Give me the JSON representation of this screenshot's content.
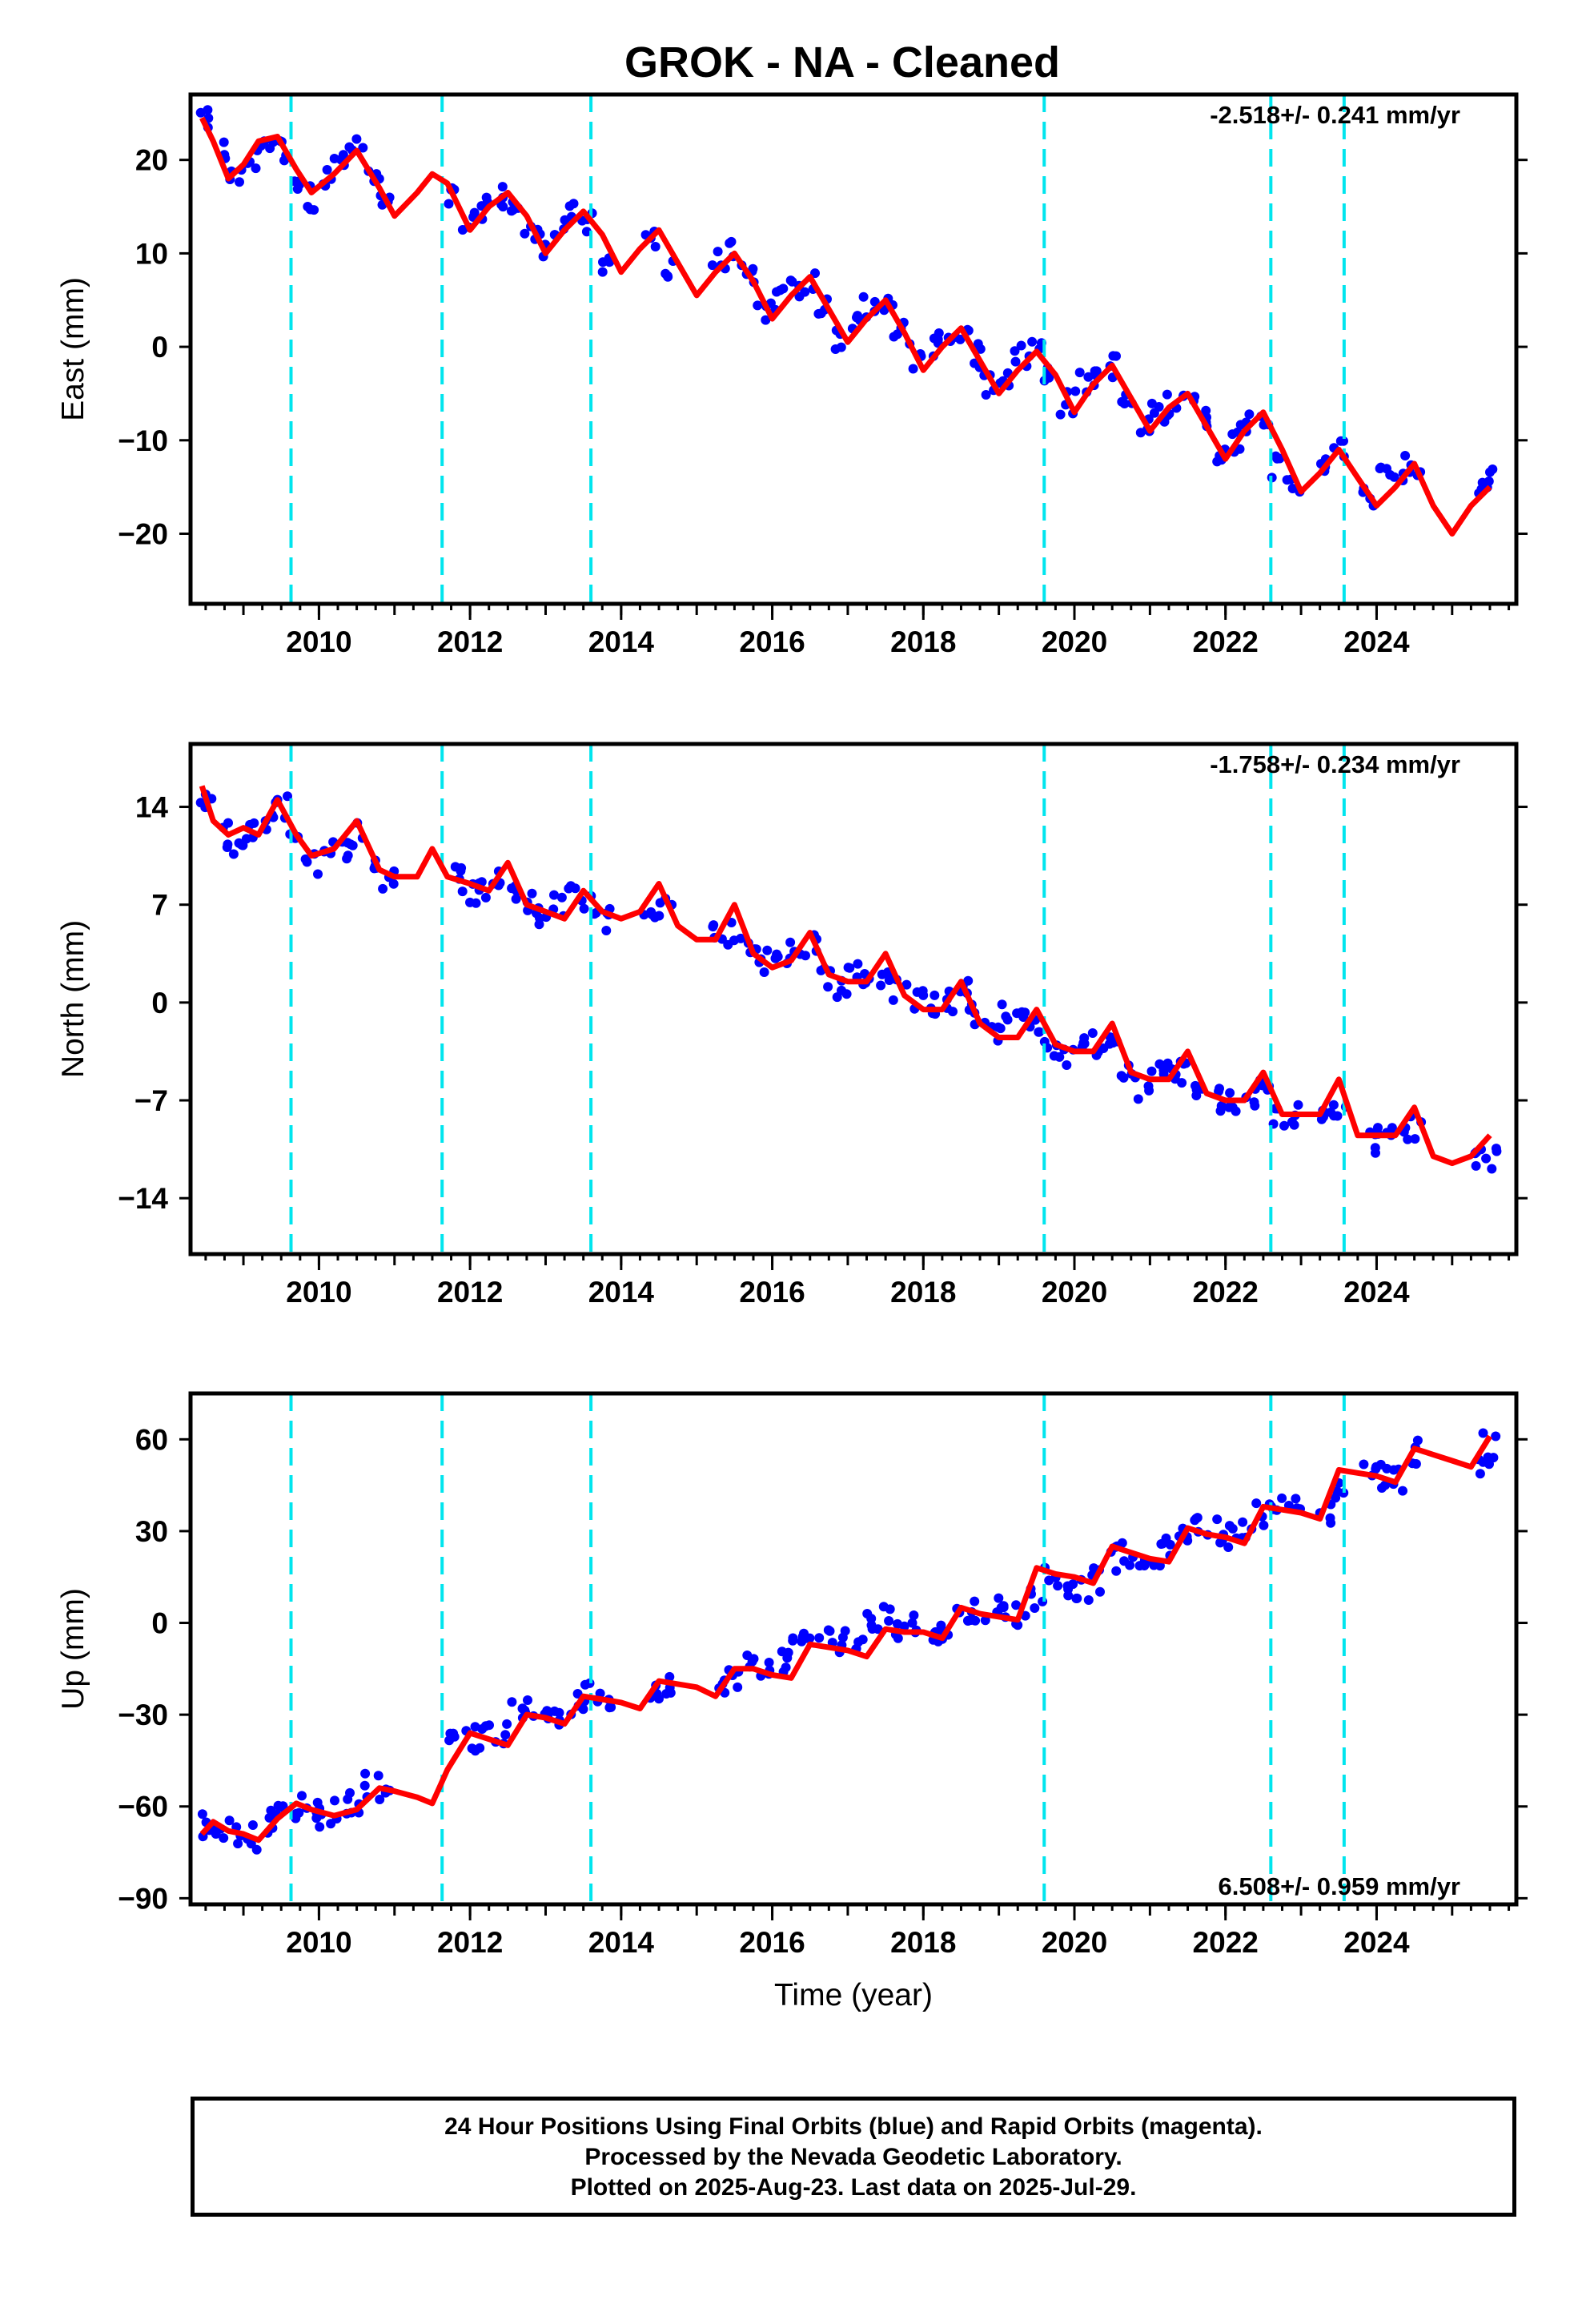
{
  "title": "GROK  - NA - Cleaned",
  "caption": {
    "line1": "24 Hour Positions Using Final Orbits (blue) and Rapid Orbits (magenta).",
    "line2": "Processed by the Nevada Geodetic Laboratory.",
    "line3": "Plotted on 2025-Aug-23. Last data on 2025-Jul-29."
  },
  "colors": {
    "points": "#0000ff",
    "model": "#ff0000",
    "events": "#00e5ee",
    "frame": "#000000"
  },
  "chart_data": [
    {
      "type": "scatter",
      "ylabel": "East (mm)",
      "xlabel": "",
      "xlim": [
        2008.3,
        2025.85
      ],
      "ylim": [
        -27.5,
        27
      ],
      "yticks": [
        20,
        10,
        0,
        -10,
        -20
      ],
      "ytick_labels": [
        "20",
        "10",
        "0",
        "−10",
        "−20"
      ],
      "xticks": [
        2010,
        2012,
        2014,
        2016,
        2018,
        2020,
        2022,
        2024
      ],
      "rate_text": "-2.518+/- 0.241 mm/yr",
      "rate_position": "top-right",
      "events": [
        2009.63,
        2011.63,
        2013.6,
        2019.6,
        2022.6,
        2023.57
      ],
      "series": {
        "observations": {
          "x": [
            2008.5,
            2008.7,
            2008.9,
            2009.1,
            2009.3,
            2009.5,
            2009.7,
            2009.9,
            2010.1,
            2010.3,
            2010.5,
            2010.7,
            2010.9,
            2011.8,
            2012.0,
            2012.2,
            2012.4,
            2012.6,
            2012.8,
            2013.0,
            2013.2,
            2013.4,
            2013.6,
            2013.8,
            2014.4,
            2014.6,
            2015.3,
            2015.5,
            2015.7,
            2015.9,
            2016.1,
            2016.3,
            2016.5,
            2016.7,
            2016.9,
            2017.1,
            2017.3,
            2017.5,
            2017.7,
            2017.9,
            2018.1,
            2018.3,
            2018.5,
            2018.7,
            2018.9,
            2019.1,
            2019.3,
            2019.5,
            2019.7,
            2019.9,
            2020.1,
            2020.3,
            2020.5,
            2020.7,
            2020.9,
            2021.1,
            2021.3,
            2021.5,
            2021.7,
            2021.9,
            2022.1,
            2022.3,
            2022.5,
            2022.7,
            2022.9,
            2023.3,
            2023.5,
            2023.9,
            2024.1,
            2024.3,
            2024.5,
            2025.4,
            2025.5
          ],
          "y": [
            24,
            21,
            18,
            20,
            22,
            21,
            18,
            16,
            18,
            20,
            21,
            18,
            15,
            16,
            13,
            15,
            16,
            15,
            12,
            11,
            13,
            14,
            13,
            9,
            12,
            8,
            9,
            10,
            7,
            4,
            5,
            6,
            7,
            4,
            1,
            3,
            4,
            4,
            2,
            -1,
            0,
            1,
            2,
            -1,
            -4,
            -3,
            -1,
            0,
            -3,
            -6,
            -4,
            -3,
            -2,
            -6,
            -9,
            -7,
            -6,
            -5,
            -8,
            -11,
            -10,
            -8,
            -7,
            -13,
            -15,
            -12,
            -11,
            -16,
            -14,
            -13,
            -13,
            -15,
            -14
          ]
        },
        "model": {
          "x": [
            2008.45,
            2008.6,
            2008.8,
            2009.0,
            2009.2,
            2009.45,
            2009.7,
            2009.9,
            2010.2,
            2010.5,
            2010.8,
            2011.0,
            2011.3,
            2011.5,
            2011.7,
            2012.0,
            2012.25,
            2012.5,
            2012.75,
            2013.0,
            2013.25,
            2013.5,
            2013.75,
            2014.0,
            2014.25,
            2014.5,
            2014.75,
            2015.0,
            2015.25,
            2015.5,
            2015.75,
            2016.0,
            2016.25,
            2016.5,
            2016.75,
            2017.0,
            2017.25,
            2017.5,
            2017.75,
            2018.0,
            2018.25,
            2018.5,
            2018.75,
            2019.0,
            2019.25,
            2019.5,
            2019.75,
            2020.0,
            2020.25,
            2020.5,
            2020.75,
            2021.0,
            2021.25,
            2021.5,
            2021.75,
            2022.0,
            2022.25,
            2022.5,
            2022.75,
            2023.0,
            2023.25,
            2023.5,
            2023.75,
            2024.0,
            2024.25,
            2024.5,
            2024.75,
            2025.0,
            2025.25,
            2025.5
          ],
          "y": [
            24.5,
            22,
            18,
            19.5,
            22,
            22.5,
            19,
            16.5,
            18.5,
            21,
            17,
            14,
            16.5,
            18.5,
            17.5,
            12.5,
            15,
            16.5,
            14,
            10,
            12.5,
            14.5,
            12,
            8,
            10.5,
            12.5,
            9,
            5.5,
            8,
            10,
            7,
            3,
            5.5,
            7.5,
            4,
            0.5,
            3,
            5,
            1.5,
            -2.5,
            0,
            2,
            -1.5,
            -5,
            -2.5,
            -0.5,
            -3,
            -7,
            -4,
            -2,
            -5.5,
            -9,
            -6.5,
            -5,
            -8.5,
            -12,
            -9,
            -7,
            -11,
            -15.5,
            -13.5,
            -11,
            -14,
            -17,
            -15,
            -12.5,
            -17,
            -20,
            -17,
            -15
          ]
        }
      }
    },
    {
      "type": "scatter",
      "ylabel": "North (mm)",
      "xlabel": "",
      "xlim": [
        2008.3,
        2025.85
      ],
      "ylim": [
        -18,
        18.5
      ],
      "yticks": [
        14,
        7,
        0,
        -7,
        -14
      ],
      "ytick_labels": [
        "14",
        "7",
        "0",
        "−7",
        "−14"
      ],
      "xticks": [
        2010,
        2012,
        2014,
        2016,
        2018,
        2020,
        2022,
        2024
      ],
      "rate_text": "-1.758+/- 0.234 mm/yr",
      "rate_position": "top-right",
      "events": [
        2009.63,
        2011.63,
        2013.6,
        2019.6,
        2022.6,
        2023.57
      ],
      "series": {
        "observations": {
          "x": [
            2008.5,
            2008.7,
            2008.9,
            2009.1,
            2009.3,
            2009.5,
            2009.7,
            2009.9,
            2010.1,
            2010.3,
            2010.5,
            2010.7,
            2010.9,
            2011.8,
            2012.0,
            2012.2,
            2012.4,
            2012.6,
            2012.8,
            2013.0,
            2013.2,
            2013.4,
            2013.6,
            2013.8,
            2014.4,
            2014.6,
            2015.3,
            2015.5,
            2015.7,
            2015.9,
            2016.1,
            2016.3,
            2016.5,
            2016.7,
            2016.9,
            2017.1,
            2017.3,
            2017.5,
            2017.7,
            2017.9,
            2018.1,
            2018.3,
            2018.5,
            2018.7,
            2018.9,
            2019.1,
            2019.3,
            2019.5,
            2019.7,
            2019.9,
            2020.1,
            2020.3,
            2020.5,
            2020.7,
            2020.9,
            2021.1,
            2021.3,
            2021.5,
            2021.7,
            2021.9,
            2022.1,
            2022.3,
            2022.5,
            2022.7,
            2022.9,
            2023.3,
            2023.5,
            2023.9,
            2024.1,
            2024.3,
            2024.5,
            2025.4,
            2025.5
          ],
          "y": [
            14,
            12,
            11,
            12,
            13,
            14,
            12,
            10,
            11,
            11,
            12,
            10,
            9,
            9,
            8,
            8,
            9,
            8,
            7,
            6,
            7,
            8,
            7,
            6,
            7,
            7,
            5,
            5,
            4,
            3,
            3,
            4,
            4,
            2,
            1,
            2,
            2,
            2,
            1,
            0,
            0,
            0,
            1,
            -1,
            -2,
            -1,
            -1,
            -2,
            -3,
            -4,
            -3,
            -3,
            -3,
            -5,
            -6,
            -5,
            -5,
            -5,
            -6,
            -7,
            -7,
            -7,
            -6,
            -8,
            -8,
            -8,
            -8,
            -10,
            -9,
            -9,
            -9,
            -11,
            -11
          ]
        },
        "model": {
          "x": [
            2008.45,
            2008.6,
            2008.8,
            2009.0,
            2009.2,
            2009.45,
            2009.7,
            2009.9,
            2010.2,
            2010.5,
            2010.8,
            2011.0,
            2011.3,
            2011.5,
            2011.7,
            2012.0,
            2012.25,
            2012.5,
            2012.75,
            2013.0,
            2013.25,
            2013.5,
            2013.75,
            2014.0,
            2014.25,
            2014.5,
            2014.75,
            2015.0,
            2015.25,
            2015.5,
            2015.75,
            2016.0,
            2016.25,
            2016.5,
            2016.75,
            2017.0,
            2017.25,
            2017.5,
            2017.75,
            2018.0,
            2018.25,
            2018.5,
            2018.75,
            2019.0,
            2019.25,
            2019.5,
            2019.75,
            2020.0,
            2020.25,
            2020.5,
            2020.75,
            2021.0,
            2021.25,
            2021.5,
            2021.75,
            2022.0,
            2022.25,
            2022.5,
            2022.75,
            2023.0,
            2023.25,
            2023.5,
            2023.75,
            2024.0,
            2024.25,
            2024.5,
            2024.75,
            2025.0,
            2025.25,
            2025.5
          ],
          "y": [
            15.5,
            13,
            12,
            12.5,
            12,
            14.5,
            12,
            10.5,
            11,
            13,
            9.5,
            9,
            9,
            11,
            9,
            8.5,
            8,
            10,
            7,
            6.5,
            6,
            8,
            6.5,
            6,
            6.5,
            8.5,
            5.5,
            4.5,
            4.5,
            7,
            3.5,
            2.5,
            3,
            5,
            2,
            1.5,
            1.5,
            3.5,
            0.5,
            -0.5,
            -0.5,
            1.5,
            -1.5,
            -2.5,
            -2.5,
            -0.5,
            -3,
            -3.5,
            -3.5,
            -1.5,
            -5,
            -5.5,
            -5.5,
            -3.5,
            -6.5,
            -7,
            -7,
            -5,
            -8,
            -8,
            -8,
            -5.5,
            -9.5,
            -9.5,
            -9.5,
            -7.5,
            -11,
            -11.5,
            -11,
            -9.5
          ]
        }
      }
    },
    {
      "type": "scatter",
      "ylabel": "Up (mm)",
      "xlabel": "Time (year)",
      "xlim": [
        2008.3,
        2025.85
      ],
      "ylim": [
        -92,
        75
      ],
      "yticks": [
        60,
        30,
        0,
        -30,
        -60,
        -90
      ],
      "ytick_labels": [
        "60",
        "30",
        "0",
        "−30",
        "−60",
        "−90"
      ],
      "xticks": [
        2010,
        2012,
        2014,
        2016,
        2018,
        2020,
        2022,
        2024
      ],
      "rate_text": "6.508+/- 0.959 mm/yr",
      "rate_position": "bottom-right",
      "events": [
        2009.63,
        2011.63,
        2013.6,
        2019.6,
        2022.6,
        2023.57
      ],
      "series": {
        "observations": {
          "x": [
            2008.5,
            2008.7,
            2008.9,
            2009.1,
            2009.3,
            2009.5,
            2009.7,
            2009.9,
            2010.1,
            2010.3,
            2010.5,
            2010.7,
            2010.9,
            2011.8,
            2012.0,
            2012.2,
            2012.4,
            2012.6,
            2012.8,
            2013.0,
            2013.2,
            2013.4,
            2013.6,
            2013.8,
            2014.4,
            2014.6,
            2015.3,
            2015.5,
            2015.7,
            2015.9,
            2016.1,
            2016.3,
            2016.5,
            2016.7,
            2016.9,
            2017.1,
            2017.3,
            2017.5,
            2017.7,
            2017.9,
            2018.1,
            2018.3,
            2018.5,
            2018.7,
            2018.9,
            2019.1,
            2019.3,
            2019.5,
            2019.7,
            2019.9,
            2020.1,
            2020.3,
            2020.5,
            2020.7,
            2020.9,
            2021.1,
            2021.3,
            2021.5,
            2021.7,
            2021.9,
            2022.1,
            2022.3,
            2022.5,
            2022.7,
            2022.9,
            2023.3,
            2023.5,
            2023.9,
            2024.1,
            2024.3,
            2024.5,
            2025.4,
            2025.5
          ],
          "y": [
            -66,
            -67,
            -68,
            -70,
            -65,
            -62,
            -60,
            -61,
            -63,
            -60,
            -58,
            -53,
            -55,
            -36,
            -38,
            -37,
            -36,
            -30,
            -29,
            -28,
            -30,
            -27,
            -23,
            -24,
            -22,
            -19,
            -22,
            -17,
            -14,
            -15,
            -12,
            -8,
            -3,
            -5,
            -6,
            -8,
            0,
            2,
            -2,
            -1,
            -2,
            -3,
            2,
            4,
            5,
            3,
            3,
            8,
            16,
            13,
            11,
            14,
            21,
            22,
            19,
            22,
            26,
            30,
            32,
            30,
            28,
            32,
            36,
            38,
            37,
            36,
            44,
            50,
            48,
            47,
            56,
            52,
            58
          ]
        },
        "model": {
          "x": [
            2008.45,
            2008.6,
            2008.8,
            2009.0,
            2009.2,
            2009.45,
            2009.7,
            2009.9,
            2010.2,
            2010.5,
            2010.8,
            2011.0,
            2011.3,
            2011.5,
            2011.7,
            2012.0,
            2012.25,
            2012.5,
            2012.75,
            2013.0,
            2013.25,
            2013.5,
            2013.75,
            2014.0,
            2014.25,
            2014.5,
            2014.75,
            2015.0,
            2015.25,
            2015.5,
            2015.75,
            2016.0,
            2016.25,
            2016.5,
            2016.75,
            2017.0,
            2017.25,
            2017.5,
            2017.75,
            2018.0,
            2018.25,
            2018.5,
            2018.75,
            2019.0,
            2019.25,
            2019.5,
            2019.75,
            2020.0,
            2020.25,
            2020.5,
            2020.75,
            2021.0,
            2021.25,
            2021.5,
            2021.75,
            2022.0,
            2022.25,
            2022.5,
            2022.75,
            2023.0,
            2023.25,
            2023.5,
            2023.75,
            2024.0,
            2024.25,
            2024.5,
            2024.75,
            2025.0,
            2025.25,
            2025.5
          ],
          "y": [
            -69,
            -65,
            -68,
            -69,
            -71,
            -64,
            -59,
            -61,
            -63,
            -61,
            -54,
            -55,
            -57,
            -59,
            -48,
            -36,
            -38,
            -40,
            -30,
            -31,
            -33,
            -24,
            -25,
            -26,
            -28,
            -19,
            -20,
            -21,
            -24,
            -15,
            -15,
            -17,
            -18,
            -7,
            -8,
            -9,
            -11,
            -2,
            -3,
            -3,
            -5,
            5,
            3,
            2,
            1,
            18,
            16,
            15,
            13,
            25,
            23,
            21,
            20,
            31,
            29,
            28,
            26,
            38,
            37,
            36,
            34,
            50,
            49,
            48,
            46,
            57,
            55,
            53,
            51,
            61
          ]
        }
      }
    }
  ]
}
